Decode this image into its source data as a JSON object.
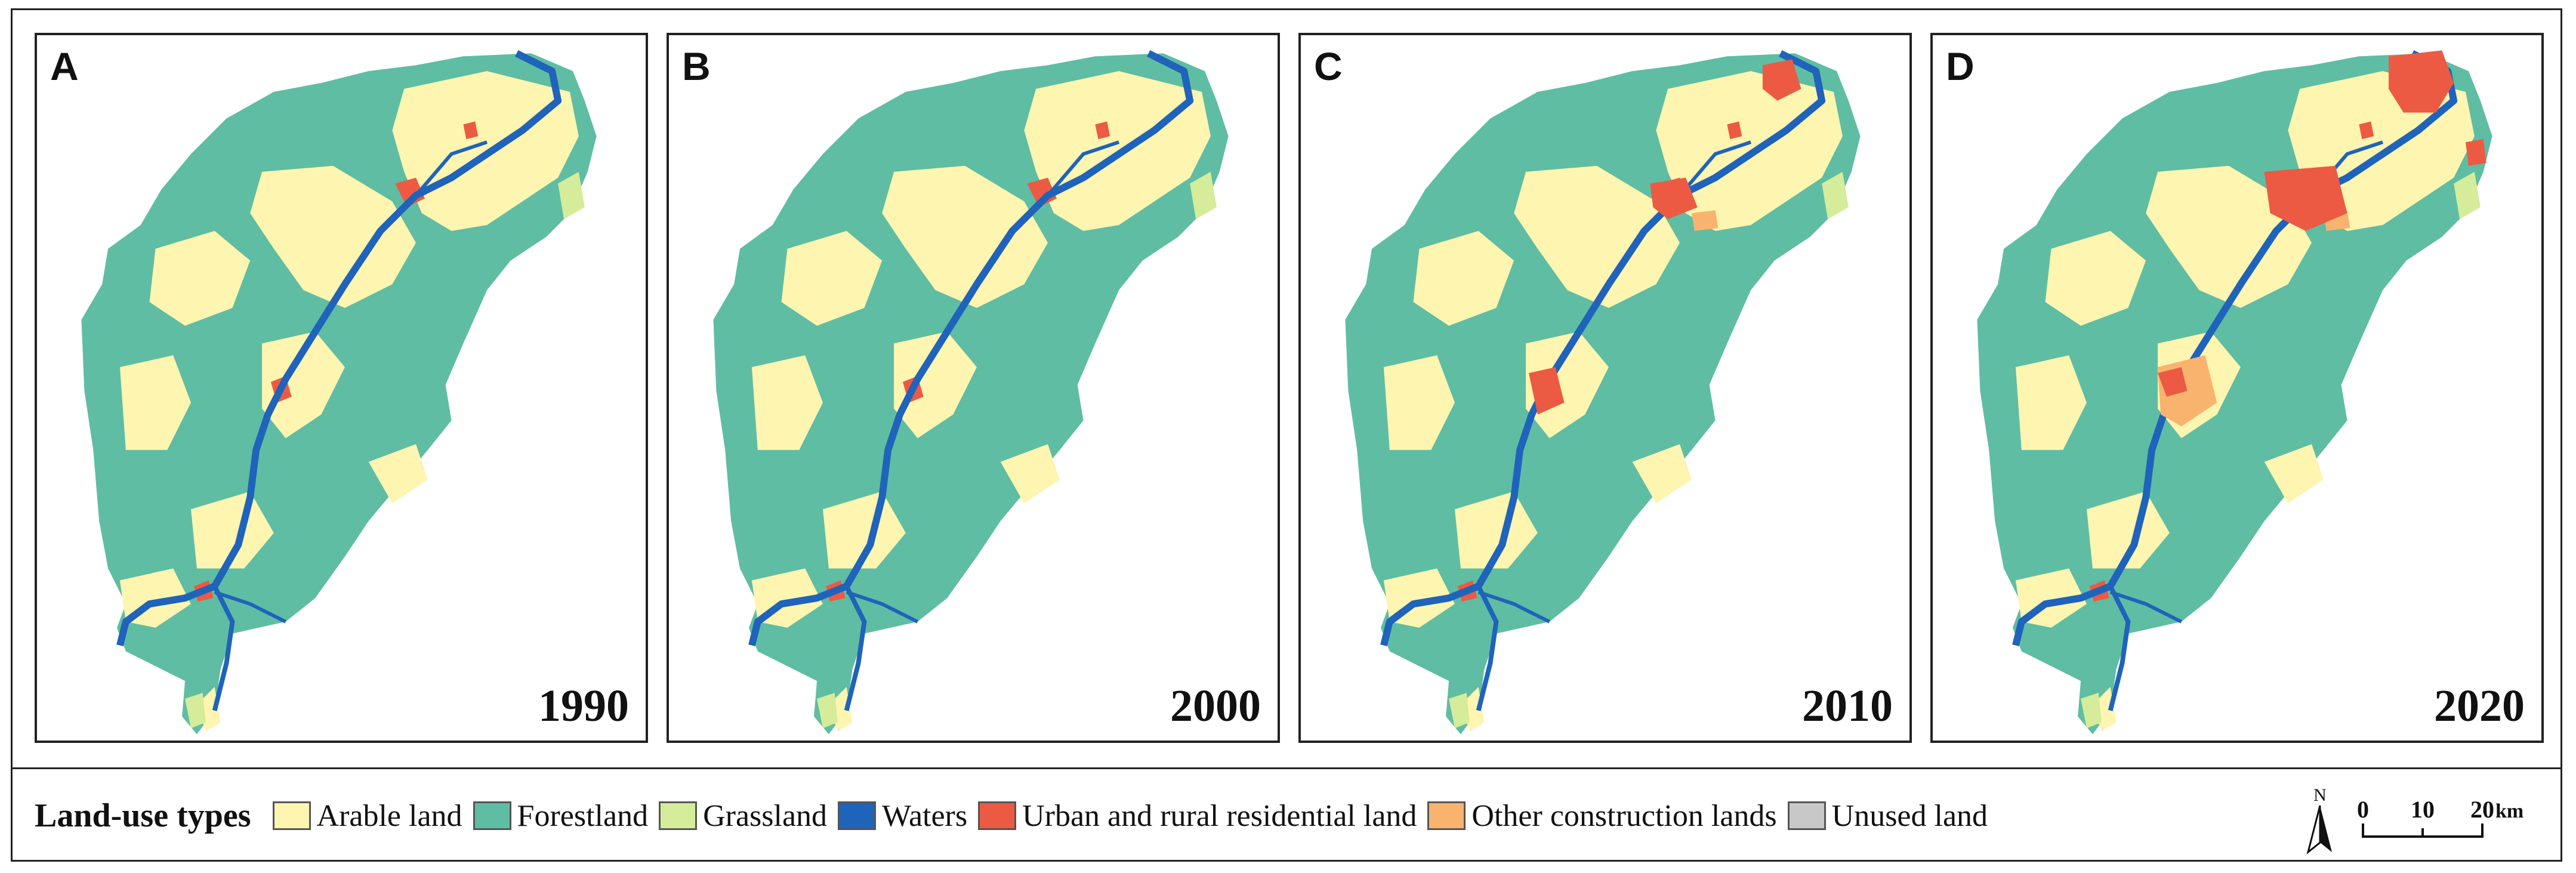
{
  "panels": [
    {
      "letter": "A",
      "year": "1990"
    },
    {
      "letter": "B",
      "year": "2000"
    },
    {
      "letter": "C",
      "year": "2010"
    },
    {
      "letter": "D",
      "year": "2020"
    }
  ],
  "legend": {
    "title": "Land-use types",
    "items": [
      {
        "label": "Arable land",
        "color": "#fdf5b0"
      },
      {
        "label": "Forestland",
        "color": "#5fbda3"
      },
      {
        "label": "Grassland",
        "color": "#d5ec9a"
      },
      {
        "label": "Waters",
        "color": "#1f63bb"
      },
      {
        "label": "Urban and rural residential land",
        "color": "#ec5a43"
      },
      {
        "label": "Other construction lands",
        "color": "#f8b46e"
      },
      {
        "label": "Unused land",
        "color": "#c8c8c8"
      }
    ]
  },
  "north_arrow": {
    "label": "N"
  },
  "scale": {
    "ticks": [
      "0",
      "10",
      "20"
    ],
    "unit": "km"
  }
}
